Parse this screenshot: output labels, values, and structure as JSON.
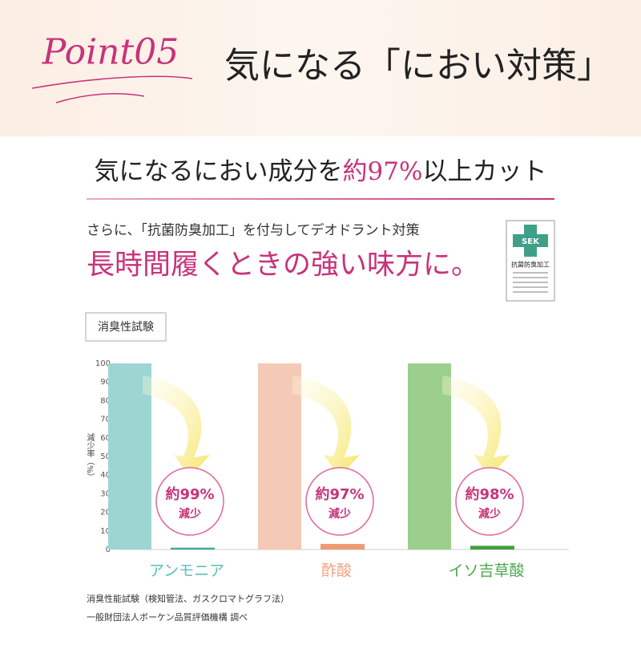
{
  "header": {
    "point": "Point05",
    "title": "気になる「におい対策」"
  },
  "headline": {
    "before": "気になるにおい成分を",
    "highlight": "約97%",
    "after": "以上カット"
  },
  "lead": "さらに、「抗菌防臭加工」を付与してデオドラント対策",
  "catch": "長時間履くときの強い味方に。",
  "badge": {
    "mark": "SEK",
    "label": "抗菌防臭加工"
  },
  "tag": "消臭性試験",
  "chart_data": {
    "type": "bar",
    "ylabel": "減少率（%）",
    "categories": [
      "アンモニア",
      "酢酸",
      "イソ吉草酸"
    ],
    "category_colors": [
      "#5bbfba",
      "#f0a583",
      "#4aa84a"
    ],
    "series": [
      {
        "colors": [
          "#9dd5d2",
          "#f4c9b5",
          "#9ccf8d"
        ],
        "values": [
          100,
          100,
          100
        ]
      },
      {
        "colors": [
          "#3fa898",
          "#ee9a72",
          "#3f9f3f"
        ],
        "values": [
          1,
          3,
          2
        ]
      }
    ],
    "annotations": [
      {
        "text": "約99%",
        "sub": "減少"
      },
      {
        "text": "約97%",
        "sub": "減少"
      },
      {
        "text": "約98%",
        "sub": "減少"
      }
    ],
    "ylim": [
      0,
      100
    ],
    "yticks": [
      0,
      10,
      20,
      30,
      40,
      50,
      60,
      70,
      80,
      90,
      100
    ]
  },
  "notes": [
    "消臭性能試験（検知管法、ガスクロマトグラフ法）",
    "一般財団法人ボーケン品質評価機構 調べ"
  ]
}
